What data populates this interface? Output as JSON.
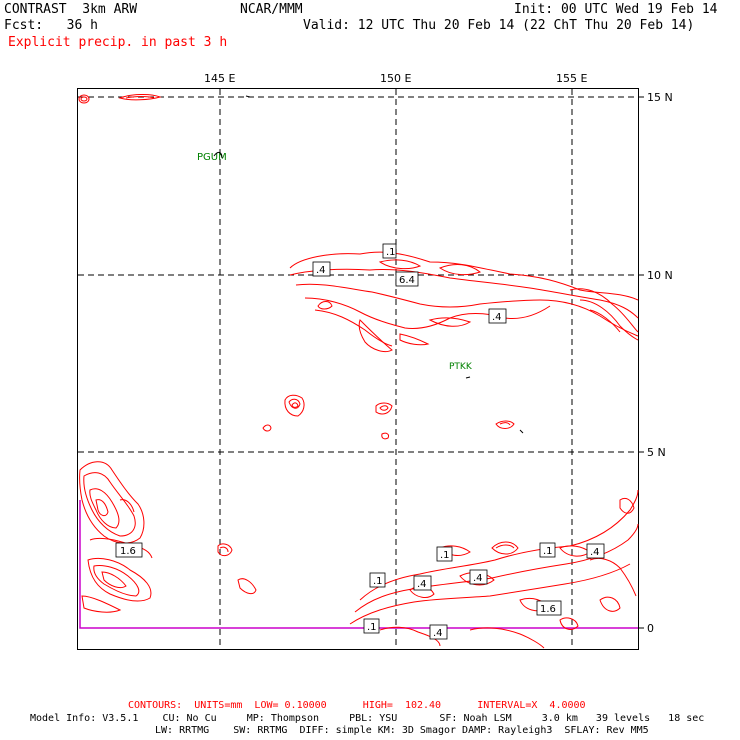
{
  "header": {
    "model": "CONTRAST  3km ARW",
    "org": "NCAR/MMM",
    "init": "Init: 00 UTC Wed 19 Feb 14",
    "fcst": "Fcst:   36 h",
    "valid": "Valid: 12 UTC Thu 20 Feb 14 (22 ChT Thu 20 Feb 14)",
    "field": "Explicit precip. in past 3 h"
  },
  "map": {
    "lon_labels": [
      "145 E",
      "150 E",
      "155 E"
    ],
    "lat_labels": [
      "15 N",
      "10 N",
      "5 N",
      "0"
    ],
    "stations": [
      "PGUM",
      "PTKK"
    ],
    "contour_labels": [
      ".1",
      ".4",
      "6.4",
      ".4",
      "1.6",
      ".1",
      ".1",
      ".4",
      ".4",
      ".1",
      ".4",
      "1.6",
      ".1",
      ".4"
    ],
    "colors": {
      "contour": "#ff0000",
      "grid": "#000000",
      "station": "#008000",
      "domain_box": "#cc00cc"
    }
  },
  "footer": {
    "contours": "CONTOURS:  UNITS=mm  LOW= 0.10000      HIGH=  102.40      INTERVAL=X  4.0000",
    "info1": "Model Info: V3.5.1    CU: No Cu     MP: Thompson     PBL: YSU       SF: Noah LSM     3.0 km   39 levels   18 sec",
    "info2": "LW: RRTMG    SW: RRTMG  DIFF: simple KM: 3D Smagor DAMP: Rayleigh3  SFLAY: Rev MM5"
  }
}
